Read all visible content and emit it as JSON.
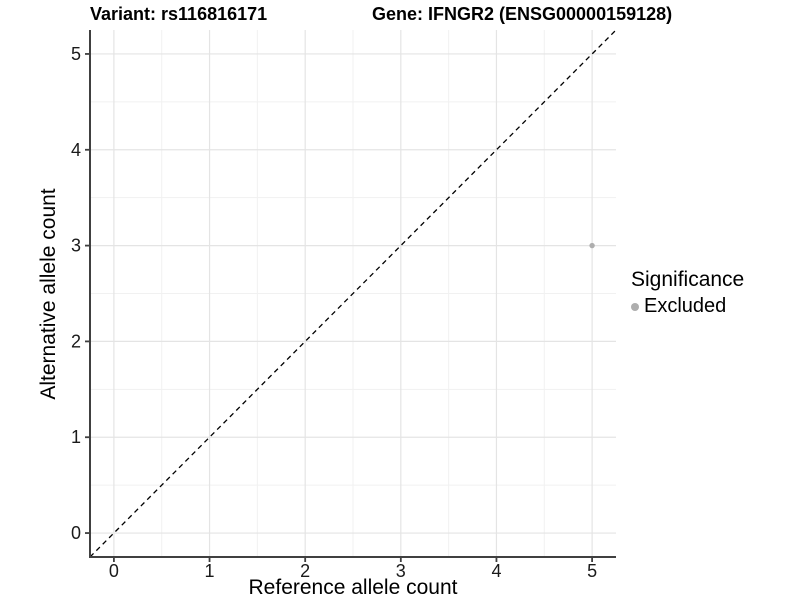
{
  "chart_data": {
    "type": "scatter",
    "titles": {
      "left": "Variant: rs116816171",
      "right": "Gene: IFNGR2 (ENSG00000159128)"
    },
    "xlabel": "Reference allele count",
    "ylabel": "Alternative allele count",
    "xlim": [
      -0.25,
      5.25
    ],
    "ylim": [
      -0.25,
      5.25
    ],
    "x_ticks": [
      0,
      1,
      2,
      3,
      4,
      5
    ],
    "y_ticks": [
      0,
      1,
      2,
      3,
      4,
      5
    ],
    "x_minor_ticks": [
      0.5,
      1.5,
      2.5,
      3.5,
      4.5
    ],
    "y_minor_ticks": [
      0.5,
      1.5,
      2.5,
      3.5,
      4.5
    ],
    "grid": true,
    "reference_line": {
      "kind": "y=x",
      "dashed": true,
      "color": "#000000"
    },
    "series": [
      {
        "name": "Excluded",
        "color": "#aeaeae",
        "points": [
          {
            "x": 5,
            "y": 3
          }
        ]
      }
    ],
    "legend": {
      "title": "Significance",
      "position": "right",
      "items": [
        {
          "label": "Excluded",
          "color": "#aeaeae"
        }
      ]
    },
    "colors": {
      "background": "#ffffff",
      "grid_major": "#e4e4e4",
      "grid_minor": "#f1f1f1",
      "axis_line": "#404040",
      "tick_mark": "#404040",
      "tick_text": "#1a1a1a"
    }
  }
}
